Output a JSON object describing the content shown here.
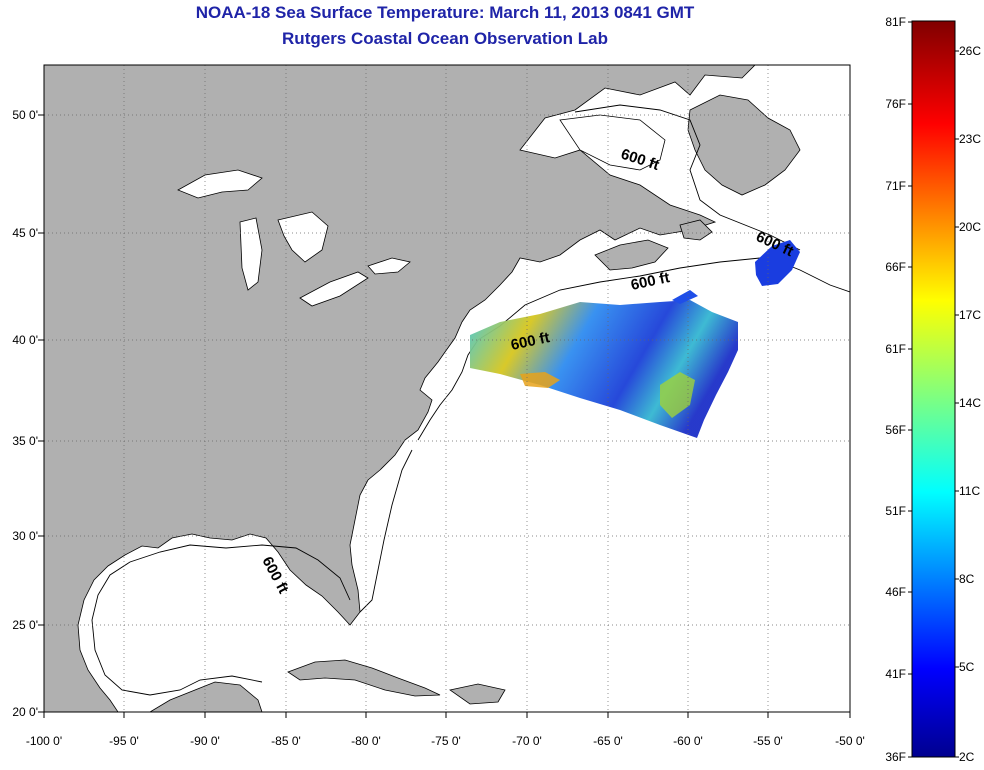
{
  "title": {
    "line1": "NOAA-18 Sea Surface Temperature:  March 11, 2013 0841 GMT",
    "line2": "Rutgers Coastal Ocean Observation Lab"
  },
  "axes": {
    "lon_labels": [
      "-100 0'",
      "-95 0'",
      "-90 0'",
      "-85 0'",
      "-80 0'",
      "-75 0'",
      "-70 0'",
      "-65 0'",
      "-60 0'",
      "-55 0'",
      "-50 0'"
    ],
    "lat_labels": [
      "50 0'",
      "45 0'",
      "40 0'",
      "35 0'",
      "30 0'",
      "25 0'",
      "20 0'"
    ]
  },
  "contours": {
    "label": "600 ft"
  },
  "colorbar": {
    "fahrenheit": [
      "81F",
      "76F",
      "71F",
      "66F",
      "61F",
      "56F",
      "51F",
      "46F",
      "41F",
      "36F"
    ],
    "celsius": [
      "26C",
      "23C",
      "20C",
      "17C",
      "14C",
      "11C",
      "8C",
      "5C",
      "2C"
    ]
  },
  "colors": {
    "land": "#b0b0b0",
    "ocean": "#ffffff",
    "title": "#1f24a8",
    "grid": "#666666"
  }
}
